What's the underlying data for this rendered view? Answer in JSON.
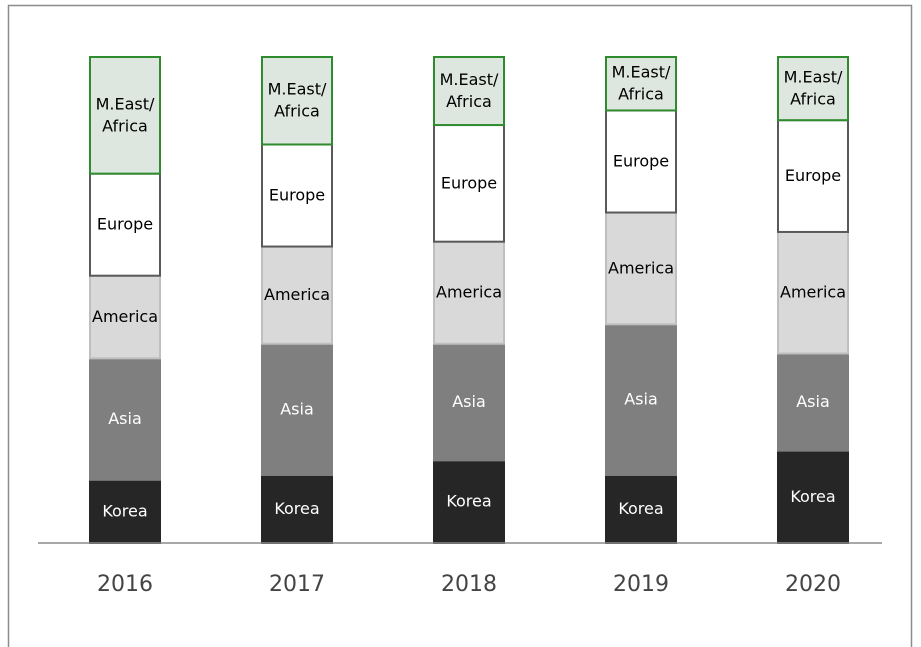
{
  "chart_data": {
    "type": "bar",
    "stacked": true,
    "categories": [
      "2016",
      "2017",
      "2018",
      "2019",
      "2020"
    ],
    "ylim": [
      0,
      100
    ],
    "series": [
      {
        "name": "Korea",
        "color": "#262626",
        "stroke": "#262626",
        "label_color": "#ffffff",
        "values": [
          13,
          14,
          17,
          14,
          19
        ]
      },
      {
        "name": "Asia",
        "color": "#7f7f7f",
        "stroke": "#7f7f7f",
        "label_color": "#ffffff",
        "values": [
          25,
          27,
          24,
          31,
          20
        ]
      },
      {
        "name": "America",
        "color": "#d9d9d9",
        "stroke": "#bfbfbf",
        "label_color": "#000000",
        "values": [
          17,
          20,
          21,
          23,
          25
        ]
      },
      {
        "name": "Europe",
        "color": "#ffffff",
        "stroke": "#595959",
        "label_color": "#000000",
        "values": [
          21,
          21,
          24,
          21,
          23
        ]
      },
      {
        "name": "M.East/Africa",
        "color": "#dde7df",
        "stroke": "#2e8b2e",
        "label_color": "#000000",
        "values": [
          24,
          18,
          14,
          11,
          13
        ]
      }
    ]
  }
}
